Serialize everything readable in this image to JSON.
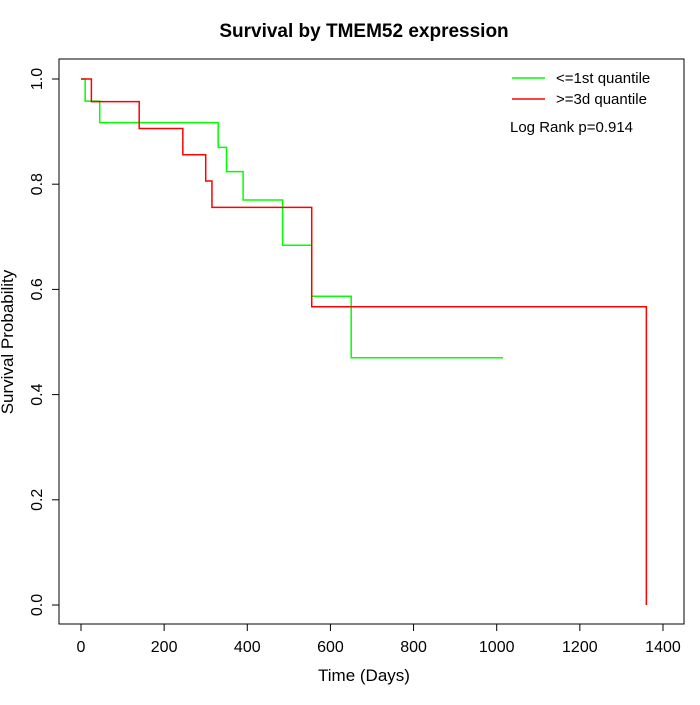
{
  "chart_data": {
    "type": "line",
    "subtype": "kaplan-meier-step",
    "title": "Survival by TMEM52 expression",
    "xlabel": "Time (Days)",
    "ylabel": "Survival Probability",
    "xlim": [
      0,
      1400
    ],
    "ylim": [
      0,
      1.0
    ],
    "x_ticks": [
      0,
      200,
      400,
      600,
      800,
      1000,
      1200,
      1400
    ],
    "x_tick_labels": [
      "0",
      "200",
      "400",
      "600",
      "800",
      "1000",
      "1200",
      "1400"
    ],
    "y_ticks": [
      0.0,
      0.2,
      0.4,
      0.6,
      0.8,
      1.0
    ],
    "y_tick_labels": [
      "0.0",
      "0.2",
      "0.4",
      "0.6",
      "0.8",
      "1.0"
    ],
    "grid": false,
    "legend_position": "top-right",
    "annotation": "Log Rank p=0.914",
    "series": [
      {
        "name": "<=1st quantile",
        "color": "#00ff00",
        "x": [
          0,
          10,
          45,
          330,
          350,
          390,
          485,
          555,
          650,
          1015
        ],
        "y": [
          1.0,
          0.958,
          0.917,
          0.87,
          0.824,
          0.77,
          0.684,
          0.587,
          0.47,
          0.47
        ]
      },
      {
        "name": ">=3d quantile",
        "color": "#ff0000",
        "x": [
          0,
          25,
          140,
          245,
          300,
          315,
          555,
          1360,
          1360
        ],
        "y": [
          1.0,
          0.957,
          0.906,
          0.856,
          0.806,
          0.756,
          0.567,
          0.567,
          0.0
        ]
      }
    ]
  }
}
